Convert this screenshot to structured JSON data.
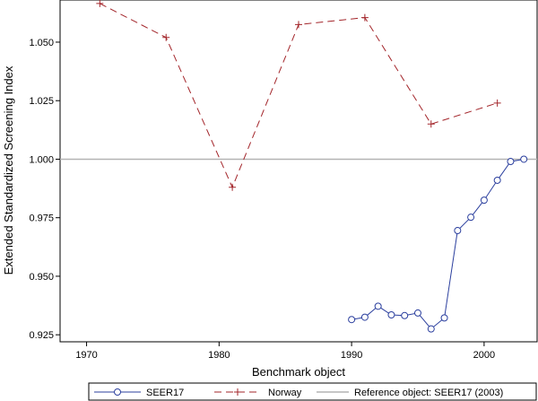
{
  "chart_data": {
    "type": "line",
    "xlabel": "Benchmark object",
    "ylabel": "Extended Standardized Screening Index",
    "xlim": [
      1968,
      2004
    ],
    "ylim": [
      0.922,
      1.068
    ],
    "x_ticks": [
      1970,
      1980,
      1990,
      2000
    ],
    "y_ticks": [
      0.925,
      0.95,
      0.975,
      1.0,
      1.025,
      1.05
    ],
    "x_tick_labels": [
      "1970",
      "1980",
      "1990",
      "2000"
    ],
    "y_tick_labels": [
      "0.925",
      "0.950",
      "0.975",
      "1.000",
      "1.025",
      "1.050"
    ],
    "grid": false,
    "legend_position": "bottom",
    "series": [
      {
        "name": "SEER17",
        "color": "#2b3f9e",
        "marker": "circle",
        "line_style": "solid",
        "x": [
          1990,
          1991,
          1992,
          1993,
          1994,
          1995,
          1996,
          1997,
          1998,
          1999,
          2000,
          2001,
          2002,
          2003
        ],
        "y": [
          0.9315,
          0.9325,
          0.9372,
          0.9335,
          0.9332,
          0.9343,
          0.9275,
          0.9322,
          0.9695,
          0.9752,
          0.9825,
          0.991,
          0.999,
          1.0
        ]
      },
      {
        "name": "Norway",
        "color": "#a3252a",
        "marker": "plus",
        "line_style": "dashed",
        "x": [
          1971,
          1976,
          1981,
          1986,
          1991,
          1996,
          2001
        ],
        "y": [
          1.0665,
          1.052,
          0.988,
          1.0575,
          1.0605,
          1.015,
          1.024
        ]
      }
    ],
    "reference_lines": [
      {
        "name": "Reference object: SEER17 (2003)",
        "color": "#b3b3b3",
        "y": 1.0
      }
    ]
  }
}
